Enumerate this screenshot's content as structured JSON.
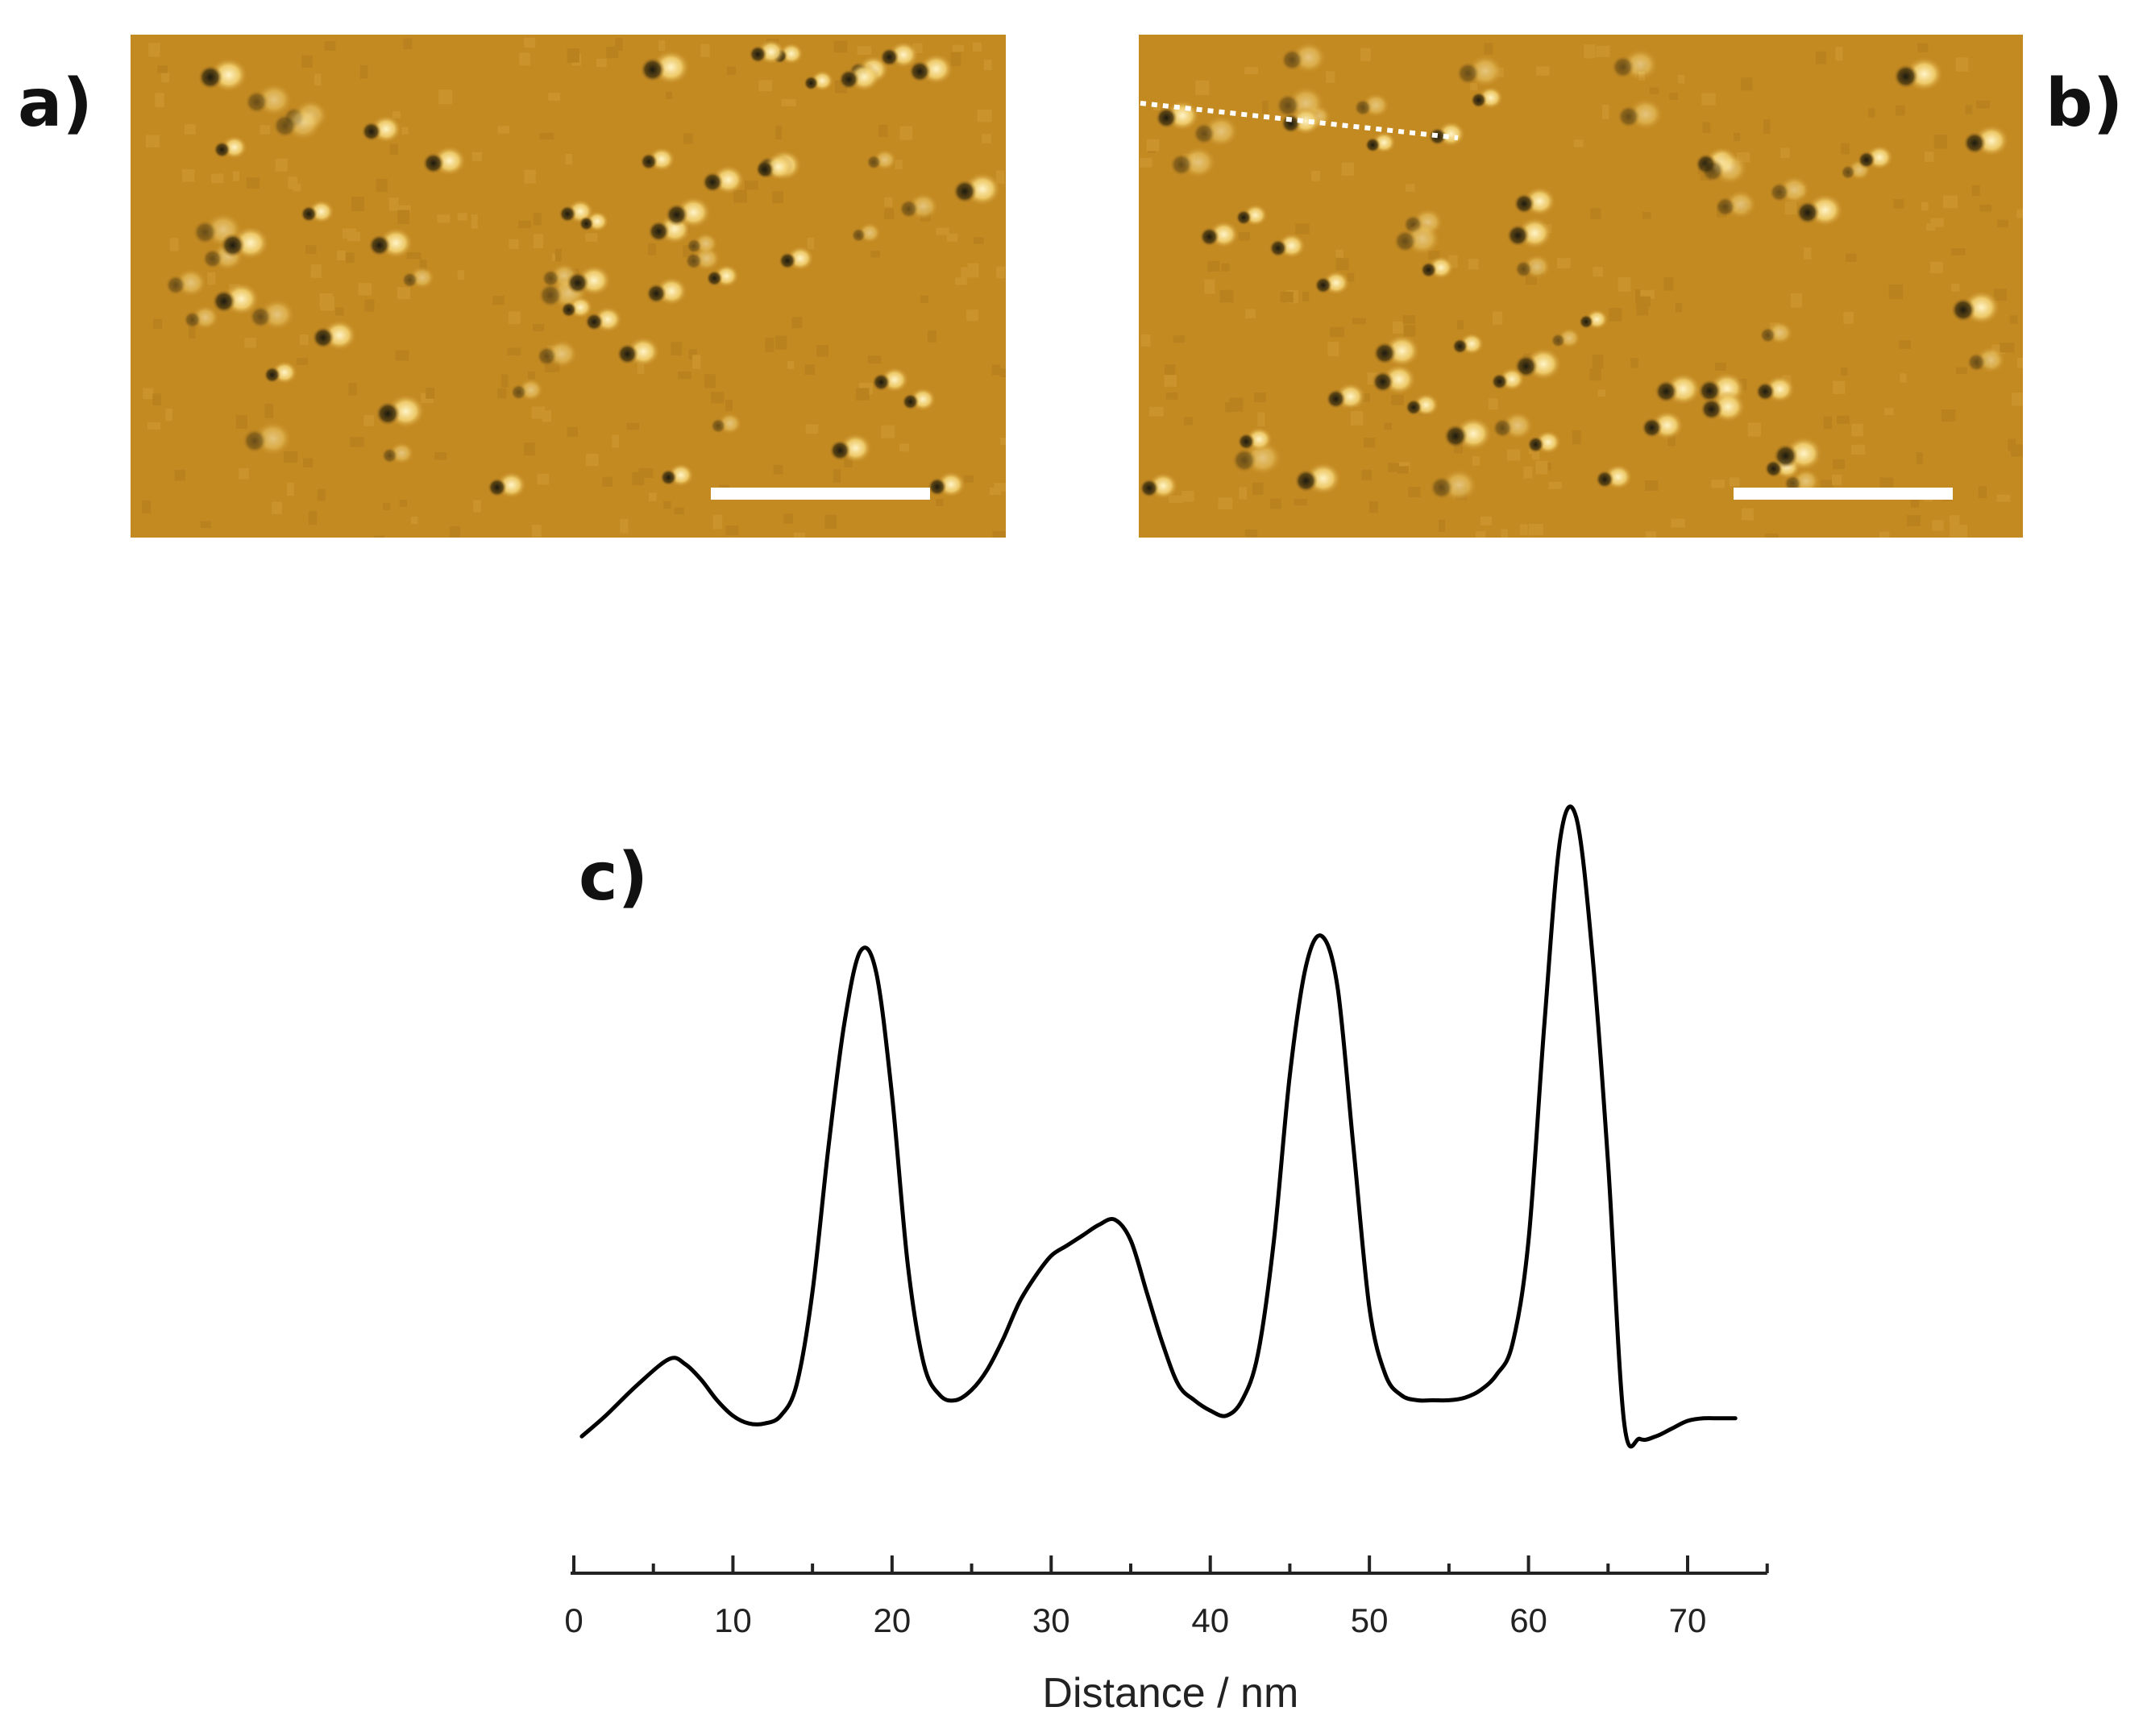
{
  "figure": {
    "panel_labels": {
      "a": "a)",
      "b": "b)",
      "c": "c)"
    },
    "colors": {
      "afm_background": "#c48a22",
      "afm_bright": "#fff4c8",
      "afm_dark": "#1c1a10",
      "scale_bar": "#ffffff",
      "trace_line": "#000000"
    },
    "afm_panels": [
      {
        "id": "a",
        "has_scale_bar": true,
        "has_line_profile_marker": false
      },
      {
        "id": "b",
        "has_scale_bar": true,
        "has_line_profile_marker": true
      }
    ]
  },
  "chart_data": {
    "type": "line",
    "title": "",
    "xlabel": "Distance / nm",
    "ylabel": "",
    "xlim": [
      0,
      75
    ],
    "ylim": [
      0,
      100
    ],
    "show_y_axis": false,
    "grid": false,
    "legend": "none",
    "x_ticks": [
      0,
      10,
      20,
      30,
      40,
      50,
      60,
      70
    ],
    "x_tick_labels": [
      "0",
      "10",
      "20",
      "30",
      "40",
      "50",
      "60",
      "70"
    ],
    "series": [
      {
        "x": [
          0.5,
          2,
          4,
          6,
          7,
          8,
          9,
          10,
          11,
          12,
          13,
          14,
          15,
          16,
          17,
          18,
          19,
          20,
          21,
          22,
          23,
          24,
          25,
          26,
          27,
          28,
          29,
          30,
          31,
          32,
          33,
          34,
          35,
          36,
          37,
          38,
          39,
          40,
          41,
          42,
          43,
          44,
          45,
          46,
          47,
          48,
          49,
          50,
          51,
          52,
          53,
          54,
          55,
          56,
          57,
          58,
          59,
          60,
          61,
          62,
          63,
          64,
          65,
          66,
          67,
          68,
          69,
          70,
          71,
          72,
          73
        ],
        "y": [
          2,
          6,
          12,
          17,
          16,
          13,
          9,
          6,
          4.5,
          4.5,
          6,
          12,
          30,
          58,
          82,
          96,
          92,
          68,
          35,
          16,
          10,
          9,
          11,
          15,
          21,
          28,
          33,
          37,
          39,
          41,
          43,
          44,
          40,
          30,
          20,
          12,
          9,
          7,
          6,
          9,
          18,
          40,
          72,
          93,
          99,
          89,
          58,
          27,
          14,
          10,
          9,
          9,
          9,
          9.5,
          11,
          14,
          20,
          40,
          82,
          118,
          122,
          96,
          55,
          5,
          1.5,
          2,
          3.5,
          5,
          5.5,
          5.5,
          5.5
        ]
      }
    ]
  }
}
